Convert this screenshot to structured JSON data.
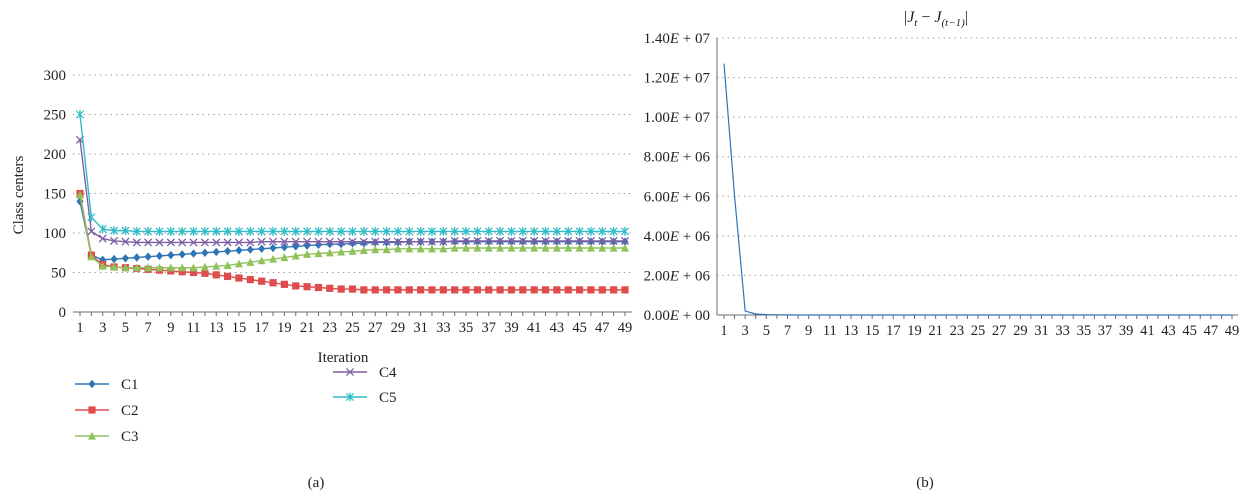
{
  "chart_data": [
    {
      "type": "line",
      "panel_label": "(a)",
      "title": "",
      "xlabel": "Iteration",
      "ylabel": "Class centers",
      "ylim": [
        0,
        300
      ],
      "yticks": [
        0,
        50,
        100,
        150,
        200,
        250,
        300
      ],
      "x_range": [
        1,
        49
      ],
      "x_tick_labels": [
        "1",
        "3",
        "5",
        "7",
        "9",
        "11",
        "13",
        "15",
        "17",
        "19",
        "21",
        "23",
        "25",
        "27",
        "29",
        "31",
        "33",
        "35",
        "37",
        "39",
        "41",
        "43",
        "45",
        "47",
        "49"
      ],
      "grid": "horizontal dotted",
      "legend_placement": "bottom-left",
      "series": [
        {
          "name": "C1",
          "color": "#2e75b6",
          "marker": "diamond",
          "values": [
            140,
            72,
            66,
            67,
            68,
            69,
            70,
            71,
            72,
            73,
            74,
            75,
            76,
            77,
            78,
            79,
            80,
            81,
            82,
            83,
            84,
            85,
            86,
            86,
            87,
            87,
            88,
            88,
            88,
            89,
            89,
            89,
            89,
            89,
            89,
            89,
            89,
            89,
            89,
            89,
            89,
            89,
            89,
            89,
            89,
            89,
            89,
            89,
            89
          ]
        },
        {
          "name": "C2",
          "color": "#e04c4c",
          "marker": "square",
          "values": [
            150,
            72,
            60,
            57,
            56,
            55,
            54,
            53,
            52,
            51,
            50,
            49,
            47,
            45,
            43,
            41,
            39,
            37,
            35,
            33,
            32,
            31,
            30,
            29,
            29,
            28,
            28,
            28,
            28,
            28,
            28,
            28,
            28,
            28,
            28,
            28,
            28,
            28,
            28,
            28,
            28,
            28,
            28,
            28,
            28,
            28,
            28,
            28,
            28
          ]
        },
        {
          "name": "C3",
          "color": "#8fc25b",
          "marker": "triangle",
          "values": [
            148,
            70,
            58,
            57,
            56,
            56,
            56,
            56,
            56,
            56,
            56,
            57,
            58,
            59,
            61,
            63,
            65,
            67,
            69,
            71,
            73,
            74,
            75,
            76,
            77,
            78,
            79,
            79,
            80,
            80,
            80,
            80,
            80,
            81,
            81,
            81,
            81,
            81,
            81,
            81,
            81,
            81,
            81,
            81,
            81,
            81,
            81,
            81,
            81
          ]
        },
        {
          "name": "C4",
          "color": "#7e5ea3",
          "marker": "x",
          "values": [
            218,
            102,
            93,
            90,
            89,
            88,
            88,
            88,
            88,
            88,
            88,
            88,
            88,
            88,
            88,
            88,
            89,
            89,
            89,
            89,
            89,
            89,
            89,
            89,
            89,
            89,
            89,
            89,
            89,
            89,
            89,
            89,
            89,
            90,
            90,
            90,
            90,
            90,
            90,
            90,
            90,
            90,
            90,
            90,
            90,
            90,
            90,
            90,
            90
          ]
        },
        {
          "name": "C5",
          "color": "#2fbcc9",
          "marker": "star",
          "values": [
            250,
            120,
            105,
            103,
            103,
            102,
            102,
            102,
            102,
            102,
            102,
            102,
            102,
            102,
            102,
            102,
            102,
            102,
            102,
            102,
            102,
            102,
            102,
            102,
            102,
            102,
            102,
            102,
            102,
            102,
            102,
            102,
            102,
            102,
            102,
            102,
            102,
            102,
            102,
            102,
            102,
            102,
            102,
            102,
            102,
            102,
            102,
            102,
            102
          ]
        }
      ]
    },
    {
      "type": "line",
      "panel_label": "(b)",
      "title": "|J_t − J_(t−1)|",
      "title_parts": {
        "open": "|",
        "j1": "J",
        "s1": "t",
        "minus": " − ",
        "j2": "J",
        "s2": "(t−1)",
        "close": "|"
      },
      "xlabel": "",
      "ylabel": "",
      "ylim": [
        0,
        14000000
      ],
      "yticks": [
        0,
        2000000,
        4000000,
        6000000,
        8000000,
        10000000,
        12000000,
        14000000
      ],
      "ytick_labels": [
        {
          "m": "0.00",
          "e": "00"
        },
        {
          "m": "2.00",
          "e": "06"
        },
        {
          "m": "4.00",
          "e": "06"
        },
        {
          "m": "6.00",
          "e": "06"
        },
        {
          "m": "8.00",
          "e": "06"
        },
        {
          "m": "1.00",
          "e": "07"
        },
        {
          "m": "1.20",
          "e": "07"
        },
        {
          "m": "1.40",
          "e": "07"
        }
      ],
      "x_range": [
        1,
        49
      ],
      "x_tick_labels": [
        "1",
        "3",
        "5",
        "7",
        "9",
        "11",
        "13",
        "15",
        "17",
        "19",
        "21",
        "23",
        "25",
        "27",
        "29",
        "31",
        "33",
        "35",
        "37",
        "39",
        "41",
        "43",
        "45",
        "47",
        "49"
      ],
      "grid": "horizontal dotted",
      "series": [
        {
          "color": "#2e75b6",
          "values": [
            12700000,
            6000000,
            200000,
            50000,
            20000,
            10000,
            5000,
            0,
            0,
            0,
            0,
            0,
            0,
            0,
            0,
            0,
            0,
            0,
            0,
            0,
            0,
            0,
            0,
            0,
            0,
            0,
            0,
            0,
            0,
            0,
            0,
            0,
            0,
            0,
            0,
            0,
            0,
            0,
            0,
            0,
            0,
            0,
            0,
            0,
            0,
            0,
            0,
            0,
            0
          ]
        }
      ]
    }
  ]
}
